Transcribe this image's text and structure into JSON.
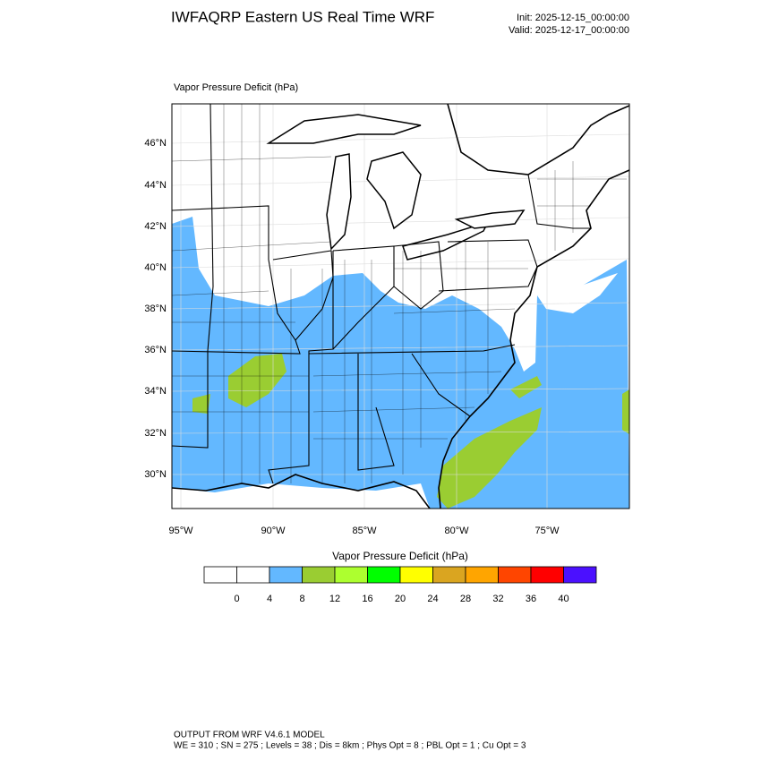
{
  "header": {
    "title": "IWFAQRP Eastern US Real Time WRF",
    "init": "Init: 2025-12-15_00:00:00",
    "valid": "Valid: 2025-12-17_00:00:00"
  },
  "map": {
    "label": "Vapor Pressure Deficit   (hPa)",
    "lat_labels": [
      "46°N",
      "44°N",
      "42°N",
      "40°N",
      "38°N",
      "36°N",
      "34°N",
      "32°N",
      "30°N"
    ],
    "lon_labels": [
      "95°W",
      "90°W",
      "85°W",
      "80°W",
      "75°W"
    ]
  },
  "colorbar": {
    "title": "Vapor Pressure Deficit   (hPa)",
    "labels": [
      "0",
      "4",
      "8",
      "12",
      "16",
      "20",
      "24",
      "28",
      "32",
      "36",
      "40"
    ],
    "colors": [
      "#ffffff",
      "#ffffff",
      "#63b8ff",
      "#9acd32",
      "#adff2f",
      "#00ff00",
      "#ffff00",
      "#daa520",
      "#ffa500",
      "#ff4500",
      "#ff0000",
      "#4b10ff"
    ]
  },
  "footer": {
    "line1": "OUTPUT FROM WRF V4.6.1 MODEL",
    "line2": "WE = 310 ; SN = 275 ; Levels = 38 ; Dis = 8km ; Phys Opt = 8 ; PBL Opt = 1 ; Cu Opt = 3"
  }
}
